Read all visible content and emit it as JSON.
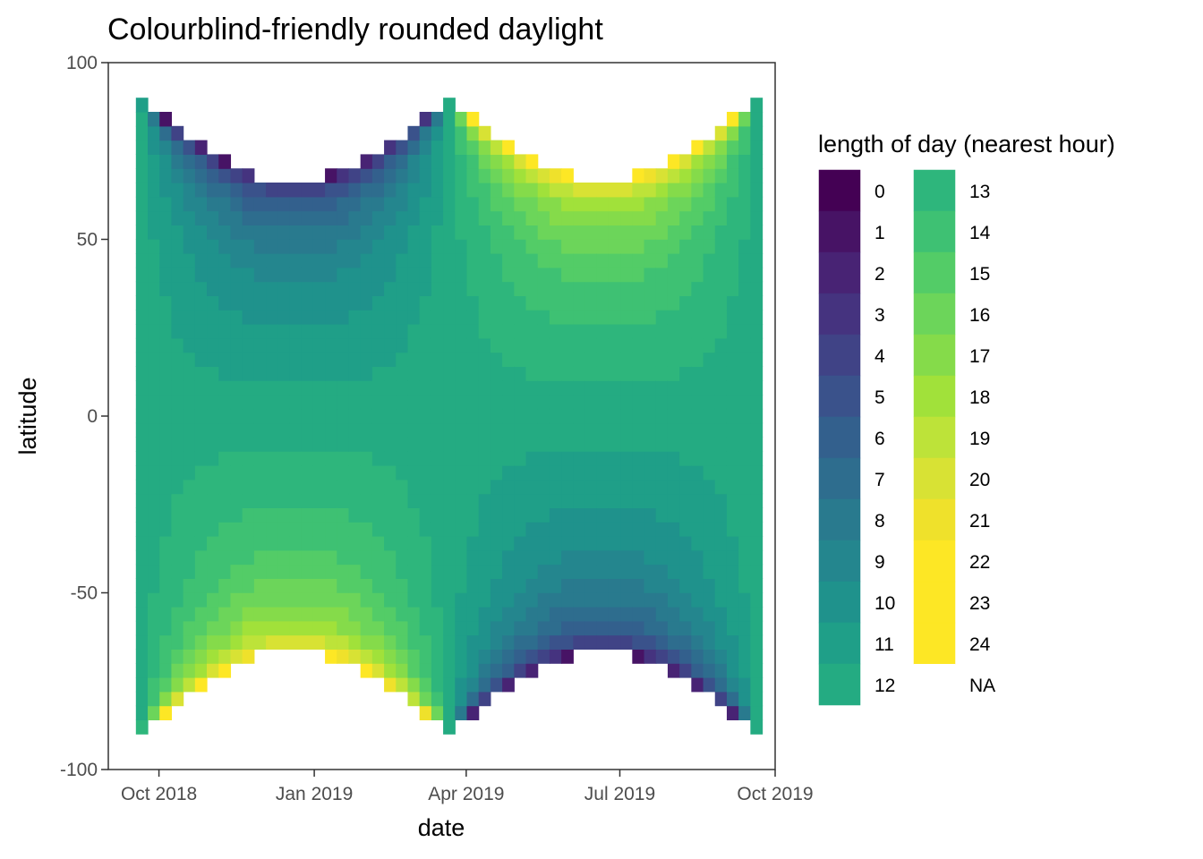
{
  "chart_data": {
    "type": "heatmap",
    "title": "Colourblind-friendly rounded daylight",
    "xlabel": "date",
    "ylabel": "latitude",
    "x_ticks": [
      "Oct 2018",
      "Jan 2019",
      "Apr 2019",
      "Jul 2019",
      "Oct 2019"
    ],
    "x_tick_dates": [
      "2018-10-01",
      "2019-01-01",
      "2019-04-01",
      "2019-07-01",
      "2019-10-01"
    ],
    "y_ticks": [
      100,
      50,
      0,
      -50,
      -100
    ],
    "ylim": [
      -100,
      100
    ],
    "xlim": [
      "2018-09-01",
      "2019-10-01"
    ],
    "x_range": [
      "2018-09-21",
      "2019-09-21"
    ],
    "time_step_days": 7,
    "lat_range": [
      -88,
      88
    ],
    "lat_step": 4,
    "solstices": {
      "north_summer": "2019-06-21",
      "north_winter": "2018-12-21"
    },
    "legend": {
      "title": "length of day (nearest hour)",
      "placement": "right",
      "levels": [
        "0",
        "1",
        "2",
        "3",
        "4",
        "5",
        "6",
        "7",
        "8",
        "9",
        "10",
        "11",
        "12",
        "13",
        "14",
        "15",
        "16",
        "17",
        "18",
        "19",
        "20",
        "21",
        "22",
        "23",
        "24",
        "NA"
      ],
      "colors": [
        "#440154",
        "#471365",
        "#482374",
        "#45337F",
        "#404386",
        "#3A528B",
        "#33608D",
        "#2E6D8E",
        "#297A8E",
        "#24868E",
        "#1F928C",
        "#1F9F88",
        "#24AB82",
        "#2EB67C",
        "#3EC173",
        "#53CC67",
        "#6CD55A",
        "#85DB4A",
        "#A1E13A",
        "#BDE339",
        "#D8E234",
        "#EFE12B",
        "#FDE725",
        "#FDE725",
        "#FDE725",
        "#FFFFFF"
      ]
    },
    "grid": false,
    "panel_border": true,
    "notes_hidden": false
  }
}
